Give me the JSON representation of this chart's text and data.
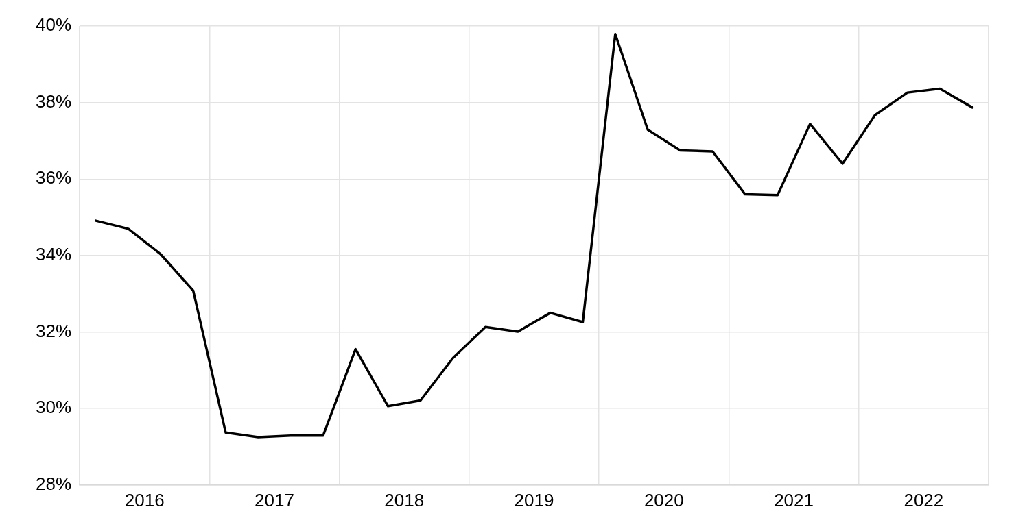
{
  "chart_data": {
    "type": "line",
    "x": [
      2016.125,
      2016.375,
      2016.625,
      2016.875,
      2017.125,
      2017.375,
      2017.625,
      2017.875,
      2018.125,
      2018.375,
      2018.625,
      2018.875,
      2019.125,
      2019.375,
      2019.625,
      2019.875,
      2020.125,
      2020.375,
      2020.625,
      2020.875,
      2021.125,
      2021.375,
      2021.625,
      2021.875,
      2022.125,
      2022.375,
      2022.625,
      2022.875
    ],
    "series": [
      {
        "color": "#000000",
        "values": [
          34.91,
          34.7,
          34.03,
          33.08,
          29.37,
          29.25,
          29.29,
          29.29,
          31.55,
          30.06,
          30.21,
          31.32,
          32.13,
          32.01,
          32.5,
          32.26,
          39.79,
          37.29,
          36.75,
          36.72,
          35.6,
          35.58,
          37.44,
          36.4,
          37.67,
          38.26,
          38.36,
          37.87
        ]
      }
    ],
    "xlim": [
      2016,
      2023
    ],
    "xticks": [
      {
        "value": 2016,
        "label": null
      },
      {
        "value": 2016.5,
        "label": "2016"
      },
      {
        "value": 2017,
        "label": null
      },
      {
        "value": 2017.5,
        "label": "2017"
      },
      {
        "value": 2018,
        "label": null
      },
      {
        "value": 2018.5,
        "label": "2018"
      },
      {
        "value": 2019,
        "label": null
      },
      {
        "value": 2019.5,
        "label": "2019"
      },
      {
        "value": 2020,
        "label": null
      },
      {
        "value": 2020.5,
        "label": "2020"
      },
      {
        "value": 2021,
        "label": null
      },
      {
        "value": 2021.5,
        "label": "2021"
      },
      {
        "value": 2022,
        "label": null
      },
      {
        "value": 2022.5,
        "label": "2022"
      },
      {
        "value": 2023,
        "label": null
      }
    ],
    "ylim": [
      28,
      40
    ],
    "yticks": [
      {
        "value": 28,
        "label": "28%"
      },
      {
        "value": 30,
        "label": "30%"
      },
      {
        "value": 32,
        "label": "32%"
      },
      {
        "value": 34,
        "label": "34%"
      },
      {
        "value": 36,
        "label": "36%"
      },
      {
        "value": 38,
        "label": "38%"
      },
      {
        "value": 40,
        "label": "40%"
      }
    ],
    "grid": true,
    "legend": false,
    "marker": "none",
    "line_style": "solid"
  }
}
